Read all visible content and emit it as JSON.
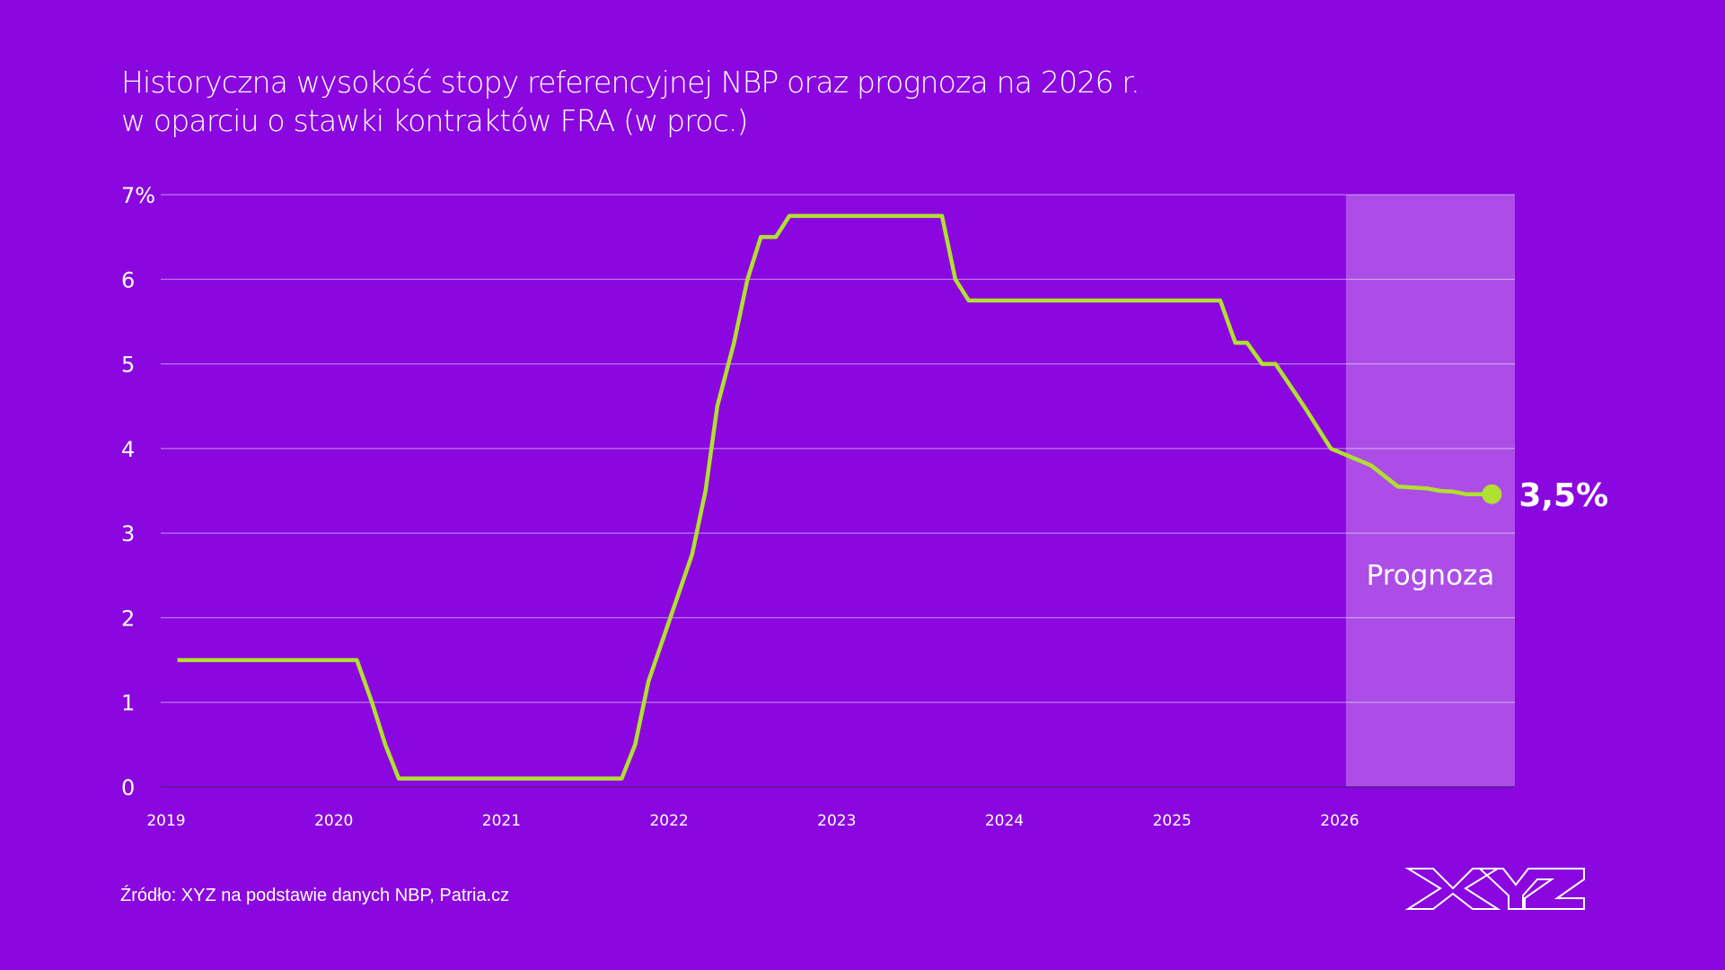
{
  "title_line1": "Historyczna wysokość stopy referencyjnej NBP oraz prognoza na 2026 r.",
  "title_line2": "w oparciu o stawki kontraktów FRA (w proc.)",
  "source": "Źródło: XYZ na podstawie danych NBP, Patria.cz",
  "logo_text": "XYZ",
  "colors": {
    "background": "#8a08df",
    "line": "#b0e030",
    "forecast_band": "#ad4de8",
    "text": "#ffffff"
  },
  "chart_data": {
    "type": "line",
    "title": "Historyczna wysokość stopy referencyjnej NBP oraz prognoza na 2026 r. w oparciu o stawki kontraktów FRA (w proc.)",
    "xlabel": "",
    "ylabel": "",
    "xlim": [
      2019,
      2027
    ],
    "ylim": [
      0,
      7
    ],
    "x_ticks": [
      "2019",
      "2020",
      "2021",
      "2022",
      "2023",
      "2024",
      "2025",
      "2026"
    ],
    "y_ticks": [
      "0",
      "1",
      "2",
      "3",
      "4",
      "5",
      "6",
      "7%"
    ],
    "grid": true,
    "forecast_region": {
      "label": "Prognoza",
      "from": 2026,
      "to": 2027
    },
    "end_label": "3,5%",
    "series": [
      {
        "x": [
          2019.03,
          2020.1,
          2020.19,
          2020.27,
          2020.35,
          2021.68,
          2021.76,
          2021.84,
          2021.97,
          2022.1,
          2022.18,
          2022.25,
          2022.35,
          2022.43,
          2022.51,
          2022.6,
          2022.68,
          2023.59,
          2023.67,
          2023.75,
          2025.25,
          2025.34,
          2025.41,
          2025.5,
          2025.58,
          2025.75,
          2025.91,
          2026.15,
          2026.31,
          2026.48,
          2026.56,
          2026.64,
          2026.72,
          2026.87
        ],
        "y": [
          1.5,
          1.5,
          1.0,
          0.5,
          0.1,
          0.1,
          0.5,
          1.25,
          2.0,
          2.75,
          3.5,
          4.5,
          5.25,
          6.0,
          6.5,
          6.5,
          6.75,
          6.75,
          6.0,
          5.75,
          5.75,
          5.25,
          5.25,
          5.0,
          5.0,
          4.5,
          4.0,
          3.8,
          3.55,
          3.53,
          3.5,
          3.49,
          3.46,
          3.46
        ]
      }
    ]
  }
}
